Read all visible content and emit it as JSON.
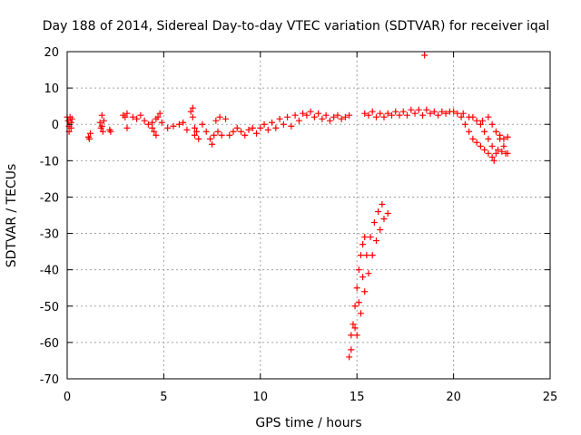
{
  "chart_data": {
    "type": "scatter",
    "title": "Day 188 of 2014, Sidereal Day-to-day VTEC variation (SDTVAR) for receiver iqal",
    "xlabel": "GPS time / hours",
    "ylabel": "SDTVAR / TECUs",
    "xlim": [
      0,
      25
    ],
    "ylim": [
      -70,
      20
    ],
    "xticks": [
      0,
      5,
      10,
      15,
      20,
      25
    ],
    "yticks": [
      -70,
      -60,
      -50,
      -40,
      -30,
      -20,
      -10,
      0,
      10,
      20
    ],
    "grid": true,
    "marker": "+",
    "color": "#ff0000",
    "series": [
      {
        "name": "SDTVAR",
        "points": [
          [
            0.0,
            2.0
          ],
          [
            0.05,
            1.0
          ],
          [
            0.1,
            -0.5
          ],
          [
            0.15,
            2.0
          ],
          [
            0.2,
            -1.0
          ],
          [
            0.25,
            1.5
          ],
          [
            0.1,
            -2.0
          ],
          [
            0.2,
            0.5
          ],
          [
            1.1,
            -3.5
          ],
          [
            1.15,
            -4.0
          ],
          [
            1.2,
            -2.5
          ],
          [
            1.7,
            0.5
          ],
          [
            1.75,
            -1.0
          ],
          [
            1.8,
            2.5
          ],
          [
            1.85,
            -2.0
          ],
          [
            1.9,
            1.0
          ],
          [
            1.8,
            -0.5
          ],
          [
            2.2,
            -1.5
          ],
          [
            2.25,
            -2.0
          ],
          [
            2.9,
            2.5
          ],
          [
            3.0,
            2.0
          ],
          [
            3.1,
            3.0
          ],
          [
            3.1,
            -1.0
          ],
          [
            3.4,
            2.0
          ],
          [
            3.6,
            1.5
          ],
          [
            3.8,
            2.5
          ],
          [
            4.0,
            1.0
          ],
          [
            4.2,
            0.0
          ],
          [
            4.4,
            0.5
          ],
          [
            4.6,
            1.5
          ],
          [
            4.7,
            2.0
          ],
          [
            4.8,
            3.0
          ],
          [
            4.5,
            -2.0
          ],
          [
            4.6,
            -3.0
          ],
          [
            4.4,
            -1.0
          ],
          [
            4.9,
            0.5
          ],
          [
            5.2,
            -1.0
          ],
          [
            5.5,
            -0.5
          ],
          [
            5.8,
            0.0
          ],
          [
            6.0,
            0.5
          ],
          [
            6.2,
            -1.5
          ],
          [
            6.4,
            3.5
          ],
          [
            6.5,
            2.0
          ],
          [
            6.6,
            -1.0
          ],
          [
            6.5,
            4.5
          ],
          [
            6.6,
            -3.0
          ],
          [
            6.8,
            -4.0
          ],
          [
            6.7,
            -2.0
          ],
          [
            7.0,
            0.0
          ],
          [
            7.2,
            -2.0
          ],
          [
            7.4,
            -4.0
          ],
          [
            7.5,
            -5.5
          ],
          [
            7.6,
            -3.0
          ],
          [
            7.7,
            1.0
          ],
          [
            7.8,
            -2.0
          ],
          [
            7.9,
            2.0
          ],
          [
            8.0,
            -3.0
          ],
          [
            8.2,
            1.5
          ],
          [
            8.4,
            -3.0
          ],
          [
            8.6,
            -2.0
          ],
          [
            8.8,
            -1.0
          ],
          [
            9.0,
            -2.0
          ],
          [
            9.2,
            -3.0
          ],
          [
            9.4,
            -1.5
          ],
          [
            9.6,
            -1.0
          ],
          [
            9.8,
            -2.5
          ],
          [
            10.0,
            -1.0
          ],
          [
            10.2,
            0.0
          ],
          [
            10.4,
            -1.5
          ],
          [
            10.6,
            0.5
          ],
          [
            10.8,
            -1.0
          ],
          [
            11.0,
            1.5
          ],
          [
            11.2,
            0.0
          ],
          [
            11.4,
            2.0
          ],
          [
            11.6,
            -0.5
          ],
          [
            11.8,
            2.5
          ],
          [
            12.0,
            1.0
          ],
          [
            12.2,
            3.0
          ],
          [
            12.4,
            2.5
          ],
          [
            12.6,
            3.5
          ],
          [
            12.8,
            2.0
          ],
          [
            13.0,
            3.0
          ],
          [
            13.2,
            1.5
          ],
          [
            13.4,
            2.5
          ],
          [
            13.6,
            1.0
          ],
          [
            13.8,
            2.0
          ],
          [
            14.0,
            2.5
          ],
          [
            14.2,
            1.5
          ],
          [
            14.4,
            2.0
          ],
          [
            14.6,
            2.5
          ],
          [
            14.6,
            -64.0
          ],
          [
            14.7,
            -58.0
          ],
          [
            14.8,
            -55.0
          ],
          [
            14.9,
            -50.0
          ],
          [
            15.0,
            -45.0
          ],
          [
            15.1,
            -40.0
          ],
          [
            15.2,
            -36.0
          ],
          [
            15.3,
            -33.0
          ],
          [
            15.4,
            -31.0
          ],
          [
            14.7,
            -62.0
          ],
          [
            14.9,
            -56.0
          ],
          [
            15.1,
            -49.0
          ],
          [
            15.3,
            -42.0
          ],
          [
            15.5,
            -36.0
          ],
          [
            15.7,
            -31.0
          ],
          [
            15.9,
            -27.0
          ],
          [
            16.1,
            -24.0
          ],
          [
            16.3,
            -22.0
          ],
          [
            15.0,
            -58.0
          ],
          [
            15.2,
            -52.0
          ],
          [
            15.4,
            -46.0
          ],
          [
            15.6,
            -41.0
          ],
          [
            15.8,
            -36.0
          ],
          [
            16.0,
            -32.0
          ],
          [
            16.2,
            -29.0
          ],
          [
            16.4,
            -26.0
          ],
          [
            16.6,
            -24.5
          ],
          [
            15.4,
            3.0
          ],
          [
            15.6,
            2.5
          ],
          [
            15.8,
            3.5
          ],
          [
            16.0,
            2.0
          ],
          [
            16.2,
            3.0
          ],
          [
            16.4,
            2.0
          ],
          [
            16.6,
            3.0
          ],
          [
            16.8,
            2.5
          ],
          [
            17.0,
            3.5
          ],
          [
            17.2,
            2.5
          ],
          [
            17.4,
            3.5
          ],
          [
            17.6,
            2.5
          ],
          [
            17.8,
            4.0
          ],
          [
            18.0,
            3.0
          ],
          [
            18.2,
            4.0
          ],
          [
            18.4,
            2.5
          ],
          [
            18.5,
            19.0
          ],
          [
            18.6,
            4.0
          ],
          [
            18.8,
            3.0
          ],
          [
            19.0,
            3.5
          ],
          [
            19.2,
            2.5
          ],
          [
            19.4,
            3.5
          ],
          [
            19.6,
            3.0
          ],
          [
            19.8,
            3.5
          ],
          [
            20.0,
            3.5
          ],
          [
            20.2,
            3.0
          ],
          [
            20.4,
            2.0
          ],
          [
            20.6,
            0.0
          ],
          [
            20.8,
            -2.0
          ],
          [
            21.0,
            -4.0
          ],
          [
            21.2,
            -5.0
          ],
          [
            21.4,
            -6.0
          ],
          [
            21.6,
            -7.0
          ],
          [
            21.8,
            -8.0
          ],
          [
            22.0,
            -9.0
          ],
          [
            22.1,
            -10.0
          ],
          [
            22.2,
            -8.0
          ],
          [
            21.8,
            -4.0
          ],
          [
            21.6,
            -2.0
          ],
          [
            21.4,
            0.0
          ],
          [
            21.2,
            1.0
          ],
          [
            21.0,
            2.0
          ],
          [
            22.0,
            -6.0
          ],
          [
            22.3,
            -7.0
          ],
          [
            22.5,
            -7.5
          ],
          [
            22.7,
            -8.0
          ],
          [
            22.4,
            -3.0
          ],
          [
            22.6,
            -4.0
          ],
          [
            22.8,
            -3.5
          ],
          [
            20.5,
            3.0
          ],
          [
            20.8,
            2.0
          ],
          [
            21.5,
            1.0
          ],
          [
            21.8,
            2.0
          ],
          [
            22.0,
            0.0
          ],
          [
            22.2,
            -2.0
          ],
          [
            22.4,
            -4.0
          ],
          [
            22.6,
            -6.0
          ],
          [
            22.8,
            -8.0
          ]
        ]
      }
    ]
  }
}
